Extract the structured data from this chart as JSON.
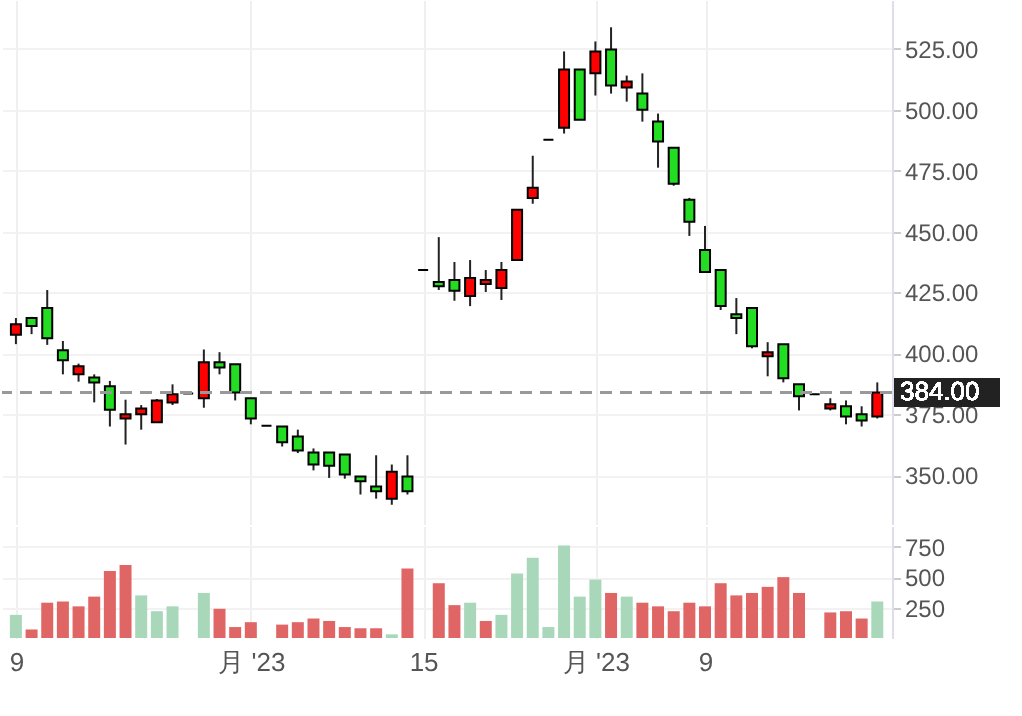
{
  "chart_data": [
    {
      "type": "candlestick",
      "categories": [
        null,
        null,
        null,
        null,
        null,
        null,
        null,
        null,
        null,
        null,
        null,
        null,
        null,
        null,
        null,
        null,
        null,
        null,
        null,
        null,
        null,
        null,
        null,
        null,
        null,
        null,
        null,
        null,
        null,
        null,
        null,
        null,
        null,
        null,
        null,
        null,
        null,
        null,
        null,
        null,
        null,
        null,
        null,
        null,
        null,
        null,
        null,
        null,
        null,
        null,
        null,
        null,
        null,
        null,
        null,
        null
      ],
      "ohlc": [
        [
          407.6,
          414.5,
          403.8,
          412.0
        ],
        [
          414.5,
          415.0,
          407.9,
          411.2
        ],
        [
          418.6,
          426.0,
          403.5,
          406.2
        ],
        [
          401.3,
          405.1,
          391.4,
          397.2
        ],
        [
          391.4,
          395.8,
          388.4,
          394.7
        ],
        [
          390.1,
          391.4,
          379.9,
          388.1
        ],
        [
          386.5,
          388.7,
          370.0,
          376.9
        ],
        [
          373.3,
          381.0,
          362.6,
          375.0
        ],
        [
          375.0,
          378.8,
          368.7,
          377.4
        ],
        [
          371.7,
          381.3,
          371.7,
          380.7
        ],
        [
          379.9,
          387.3,
          378.8,
          383.2
        ],
        [
          383.5,
          383.5,
          383.5,
          383.5
        ],
        [
          381.6,
          401.6,
          377.7,
          396.4
        ],
        [
          396.4,
          400.5,
          391.4,
          394.2
        ],
        [
          395.5,
          395.5,
          380.7,
          384.0
        ],
        [
          381.6,
          381.6,
          370.9,
          373.3
        ],
        [
          370.3,
          370.3,
          370.3,
          370.3
        ],
        [
          370.0,
          370.0,
          361.8,
          363.5
        ],
        [
          365.9,
          368.7,
          359.1,
          360.2
        ],
        [
          359.3,
          361.0,
          352.0,
          354.4
        ],
        [
          359.3,
          359.3,
          348.9,
          353.9
        ],
        [
          358.5,
          358.5,
          348.6,
          350.3
        ],
        [
          349.5,
          349.5,
          342.1,
          347.5
        ],
        [
          345.4,
          358.2,
          340.4,
          343.4
        ],
        [
          340.4,
          354.4,
          337.9,
          351.4
        ],
        [
          349.5,
          358.2,
          342.1,
          343.4
        ],
        [
          434.2,
          434.2,
          434.2,
          434.2
        ],
        [
          429.3,
          447.7,
          426.0,
          427.6
        ],
        [
          430.1,
          437.5,
          421.6,
          425.7
        ],
        [
          423.5,
          438.3,
          419.4,
          430.9
        ],
        [
          428.5,
          434.2,
          425.2,
          430.1
        ],
        [
          426.8,
          437.5,
          421.9,
          434.2
        ],
        [
          438.3,
          458.9,
          438.3,
          458.9
        ],
        [
          463.8,
          481.1,
          461.4,
          468.0
        ],
        [
          487.7,
          487.7,
          487.7,
          487.7
        ],
        [
          492.6,
          523.9,
          490.2,
          516.5
        ],
        [
          516.5,
          516.5,
          495.9,
          495.9
        ],
        [
          514.9,
          528.0,
          505.8,
          523.9
        ],
        [
          524.7,
          533.8,
          506.6,
          509.9
        ],
        [
          509.1,
          514.0,
          503.3,
          511.6
        ],
        [
          506.6,
          514.9,
          495.1,
          500.0
        ],
        [
          495.1,
          498.4,
          476.2,
          486.9
        ],
        [
          484.4,
          484.4,
          468.8,
          469.6
        ],
        [
          463.0,
          463.8,
          448.2,
          454.0
        ],
        [
          442.4,
          452.3,
          433.4,
          433.4
        ],
        [
          434.2,
          434.2,
          417.8,
          419.4
        ],
        [
          416.1,
          422.7,
          407.9,
          414.5
        ],
        [
          418.6,
          418.6,
          402.1,
          402.9
        ],
        [
          398.8,
          404.6,
          390.6,
          400.5
        ],
        [
          403.8,
          403.8,
          388.1,
          389.8
        ],
        [
          387.3,
          387.3,
          376.6,
          382.4
        ],
        [
          383.2,
          383.2,
          383.2,
          383.2
        ],
        [
          377.4,
          381.6,
          376.6,
          379.1
        ],
        [
          378.3,
          380.7,
          370.9,
          374.1
        ],
        [
          375.0,
          378.3,
          370.0,
          372.5
        ],
        [
          374.1,
          388.1,
          373.3,
          384.0
        ]
      ],
      "colors": [
        "#ff0000",
        "#22dd22",
        "#22dd22",
        "#22dd22",
        "#ff0000",
        "#22dd22",
        "#22dd22",
        "#ff0000",
        "#ff0000",
        "#ff0000",
        "#ff0000",
        "#000000",
        "#ff0000",
        "#22dd22",
        "#22dd22",
        "#22dd22",
        "#000000",
        "#22dd22",
        "#22dd22",
        "#22dd22",
        "#22dd22",
        "#22dd22",
        "#22dd22",
        "#22dd22",
        "#ff0000",
        "#22dd22",
        "#000000",
        "#22dd22",
        "#22dd22",
        "#ff0000",
        "#ff0000",
        "#ff0000",
        "#ff0000",
        "#ff0000",
        "#000000",
        "#ff0000",
        "#22dd22",
        "#ff0000",
        "#22dd22",
        "#ff0000",
        "#22dd22",
        "#22dd22",
        "#22dd22",
        "#22dd22",
        "#22dd22",
        "#22dd22",
        "#22dd22",
        "#22dd22",
        "#ff0000",
        "#22dd22",
        "#22dd22",
        "#000000",
        "#ff0000",
        "#22dd22",
        "#22dd22",
        "#ff0000"
      ],
      "ylim": [
        330,
        545
      ],
      "yticks": [
        {
          "value": 350,
          "label": "350.00"
        },
        {
          "value": 375,
          "label": "375.00"
        },
        {
          "value": 400,
          "label": "400.00"
        },
        {
          "value": 425,
          "label": "425.00"
        },
        {
          "value": 450,
          "label": "450.00"
        },
        {
          "value": 475,
          "label": "475.00"
        },
        {
          "value": 500,
          "label": "500.00"
        },
        {
          "value": 525,
          "label": "525.00"
        }
      ],
      "ref_lines": [
        {
          "axis": "y",
          "value": 384,
          "label": "384.00",
          "color": "#999999",
          "line_style": "dashed"
        }
      ],
      "grid": true,
      "tick_labels": "y"
    },
    {
      "type": "bar",
      "categories": [
        "9",
        null,
        null,
        null,
        null,
        null,
        null,
        null,
        null,
        null,
        null,
        null,
        null,
        null,
        null,
        "月 '23",
        null,
        null,
        null,
        null,
        null,
        null,
        null,
        null,
        null,
        null,
        "15",
        null,
        null,
        null,
        null,
        null,
        null,
        null,
        null,
        null,
        null,
        "月 '23",
        null,
        null,
        null,
        null,
        null,
        null,
        "9",
        null,
        null,
        null,
        null,
        null,
        null,
        null,
        null,
        null,
        null,
        null
      ],
      "values": [
        190,
        70,
        290,
        300,
        260,
        340,
        550,
        600,
        350,
        220,
        260,
        0,
        370,
        240,
        90,
        130,
        0,
        110,
        130,
        160,
        140,
        90,
        80,
        80,
        30,
        570,
        0,
        450,
        270,
        290,
        140,
        190,
        530,
        660,
        90,
        760,
        340,
        480,
        370,
        340,
        290,
        260,
        220,
        290,
        260,
        450,
        350,
        370,
        420,
        500,
        370,
        0,
        210,
        220,
        160,
        300
      ],
      "colors": [
        "#a8d8b9",
        "#e06666",
        "#e06666",
        "#e06666",
        "#e06666",
        "#e06666",
        "#e06666",
        "#e06666",
        "#a8d8b9",
        "#a8d8b9",
        "#a8d8b9",
        "#e06666",
        "#a8d8b9",
        "#e06666",
        "#e06666",
        "#e06666",
        "#e06666",
        "#e06666",
        "#e06666",
        "#e06666",
        "#e06666",
        "#e06666",
        "#e06666",
        "#e06666",
        "#a8d8b9",
        "#e06666",
        "#e06666",
        "#e06666",
        "#e06666",
        "#a8d8b9",
        "#e06666",
        "#a8d8b9",
        "#a8d8b9",
        "#a8d8b9",
        "#a8d8b9",
        "#a8d8b9",
        "#a8d8b9",
        "#a8d8b9",
        "#e06666",
        "#a8d8b9",
        "#e06666",
        "#e06666",
        "#e06666",
        "#e06666",
        "#e06666",
        "#e06666",
        "#e06666",
        "#e06666",
        "#e06666",
        "#e06666",
        "#e06666",
        "#e06666",
        "#e06666",
        "#e06666",
        "#e06666",
        "#a8d8b9"
      ],
      "ylim": [
        0,
        920
      ],
      "yticks": [
        250,
        500,
        750
      ],
      "grid": true
    }
  ]
}
